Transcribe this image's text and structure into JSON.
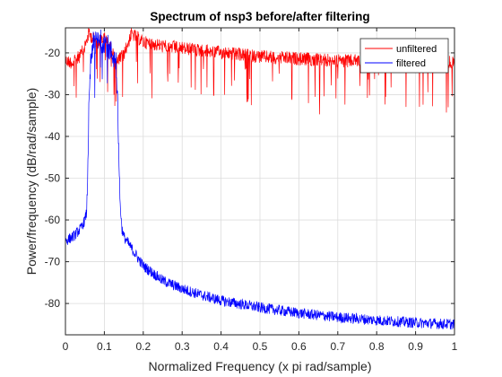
{
  "chart_data": {
    "type": "line",
    "title": "Spectrum of nsp3 before/after filtering",
    "xlabel": "Normalized Frequency (x pi rad/sample)",
    "ylabel": "Power/frequency (dB/rad/sample)",
    "xlim": [
      0,
      1
    ],
    "ylim": [
      -87.5,
      -14
    ],
    "xticks": [
      0,
      0.1,
      0.2,
      0.3,
      0.4,
      0.5,
      0.6,
      0.7,
      0.8,
      0.9,
      1
    ],
    "xtick_labels": [
      "0",
      "0.1",
      "0.2",
      "0.3",
      "0.4",
      "0.5",
      "0.6",
      "0.7",
      "0.8",
      "0.9",
      "1"
    ],
    "yticks": [
      -80,
      -70,
      -60,
      -50,
      -40,
      -30,
      -20
    ],
    "ytick_labels": [
      "-80",
      "-70",
      "-60",
      "-50",
      "-40",
      "-30",
      "-20"
    ],
    "grid": true,
    "legend_position": "top-right",
    "series": [
      {
        "name": "unfiltered",
        "color": "#ff0000",
        "x": [
          0,
          0.02,
          0.04,
          0.05,
          0.06,
          0.08,
          0.1,
          0.12,
          0.13,
          0.15,
          0.17,
          0.2,
          0.25,
          0.3,
          0.4,
          0.5,
          0.6,
          0.7,
          0.8,
          0.9,
          1.0
        ],
        "y": [
          -21.5,
          -22,
          -20,
          -18,
          -15,
          -17,
          -16,
          -19,
          -22,
          -20,
          -15,
          -17,
          -18,
          -18.5,
          -19.5,
          -20.5,
          -21,
          -21.5,
          -21.5,
          -21,
          -22
        ]
      },
      {
        "name": "filtered",
        "color": "#0000ff",
        "x": [
          0,
          0.01,
          0.02,
          0.03,
          0.04,
          0.05,
          0.055,
          0.06,
          0.065,
          0.07,
          0.1,
          0.13,
          0.135,
          0.14,
          0.145,
          0.15,
          0.2,
          0.25,
          0.3,
          0.35,
          0.4,
          0.5,
          0.6,
          0.7,
          0.8,
          0.9,
          1.0
        ],
        "y": [
          -65,
          -64.5,
          -64,
          -63,
          -62,
          -60,
          -58,
          -35,
          -22,
          -18,
          -17,
          -22,
          -35,
          -55,
          -62,
          -64,
          -71,
          -74.5,
          -76.5,
          -78,
          -79.3,
          -81,
          -82.3,
          -83.3,
          -84,
          -84.6,
          -85
        ]
      }
    ]
  }
}
